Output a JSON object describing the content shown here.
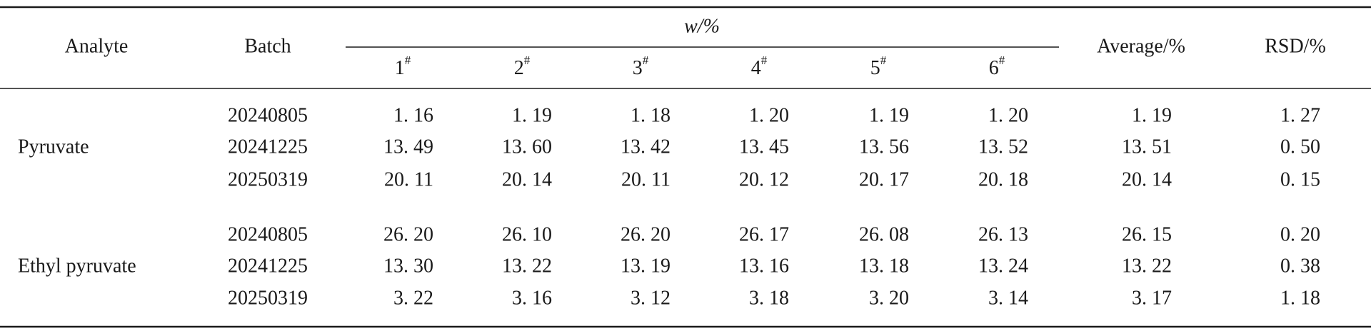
{
  "table": {
    "header": {
      "analyte": "Analyte",
      "batch": "Batch",
      "group": "w/%",
      "samples": [
        {
          "label": "1",
          "sup": "#"
        },
        {
          "label": "2",
          "sup": "#"
        },
        {
          "label": "3",
          "sup": "#"
        },
        {
          "label": "4",
          "sup": "#"
        },
        {
          "label": "5",
          "sup": "#"
        },
        {
          "label": "6",
          "sup": "#"
        }
      ],
      "average": "Average/%",
      "rsd": "RSD/%"
    },
    "groups": [
      {
        "analyte": "Pyruvate",
        "rows": [
          {
            "batch": "20240805",
            "values": [
              "1. 16",
              "1. 19",
              "1. 18",
              "1. 20",
              "1. 19",
              "1. 20"
            ],
            "average": "1. 19",
            "rsd": "1. 27"
          },
          {
            "batch": "20241225",
            "values": [
              "13. 49",
              "13. 60",
              "13. 42",
              "13. 45",
              "13. 56",
              "13. 52"
            ],
            "average": "13. 51",
            "rsd": "0. 50"
          },
          {
            "batch": "20250319",
            "values": [
              "20. 11",
              "20. 14",
              "20. 11",
              "20. 12",
              "20. 17",
              "20. 18"
            ],
            "average": "20. 14",
            "rsd": "0. 15"
          }
        ]
      },
      {
        "analyte": "Ethyl pyruvate",
        "rows": [
          {
            "batch": "20240805",
            "values": [
              "26. 20",
              "26. 10",
              "26. 20",
              "26. 17",
              "26. 08",
              "26. 13"
            ],
            "average": "26. 15",
            "rsd": "0. 20"
          },
          {
            "batch": "20241225",
            "values": [
              "13. 30",
              "13. 22",
              "13. 19",
              "13. 16",
              "13. 18",
              "13. 24"
            ],
            "average": "13. 22",
            "rsd": "0. 38"
          },
          {
            "batch": "20250319",
            "values": [
              "3. 22",
              "3. 16",
              "3. 12",
              "3. 18",
              "3. 20",
              "3. 14"
            ],
            "average": "3. 17",
            "rsd": "1. 18"
          }
        ]
      }
    ]
  }
}
